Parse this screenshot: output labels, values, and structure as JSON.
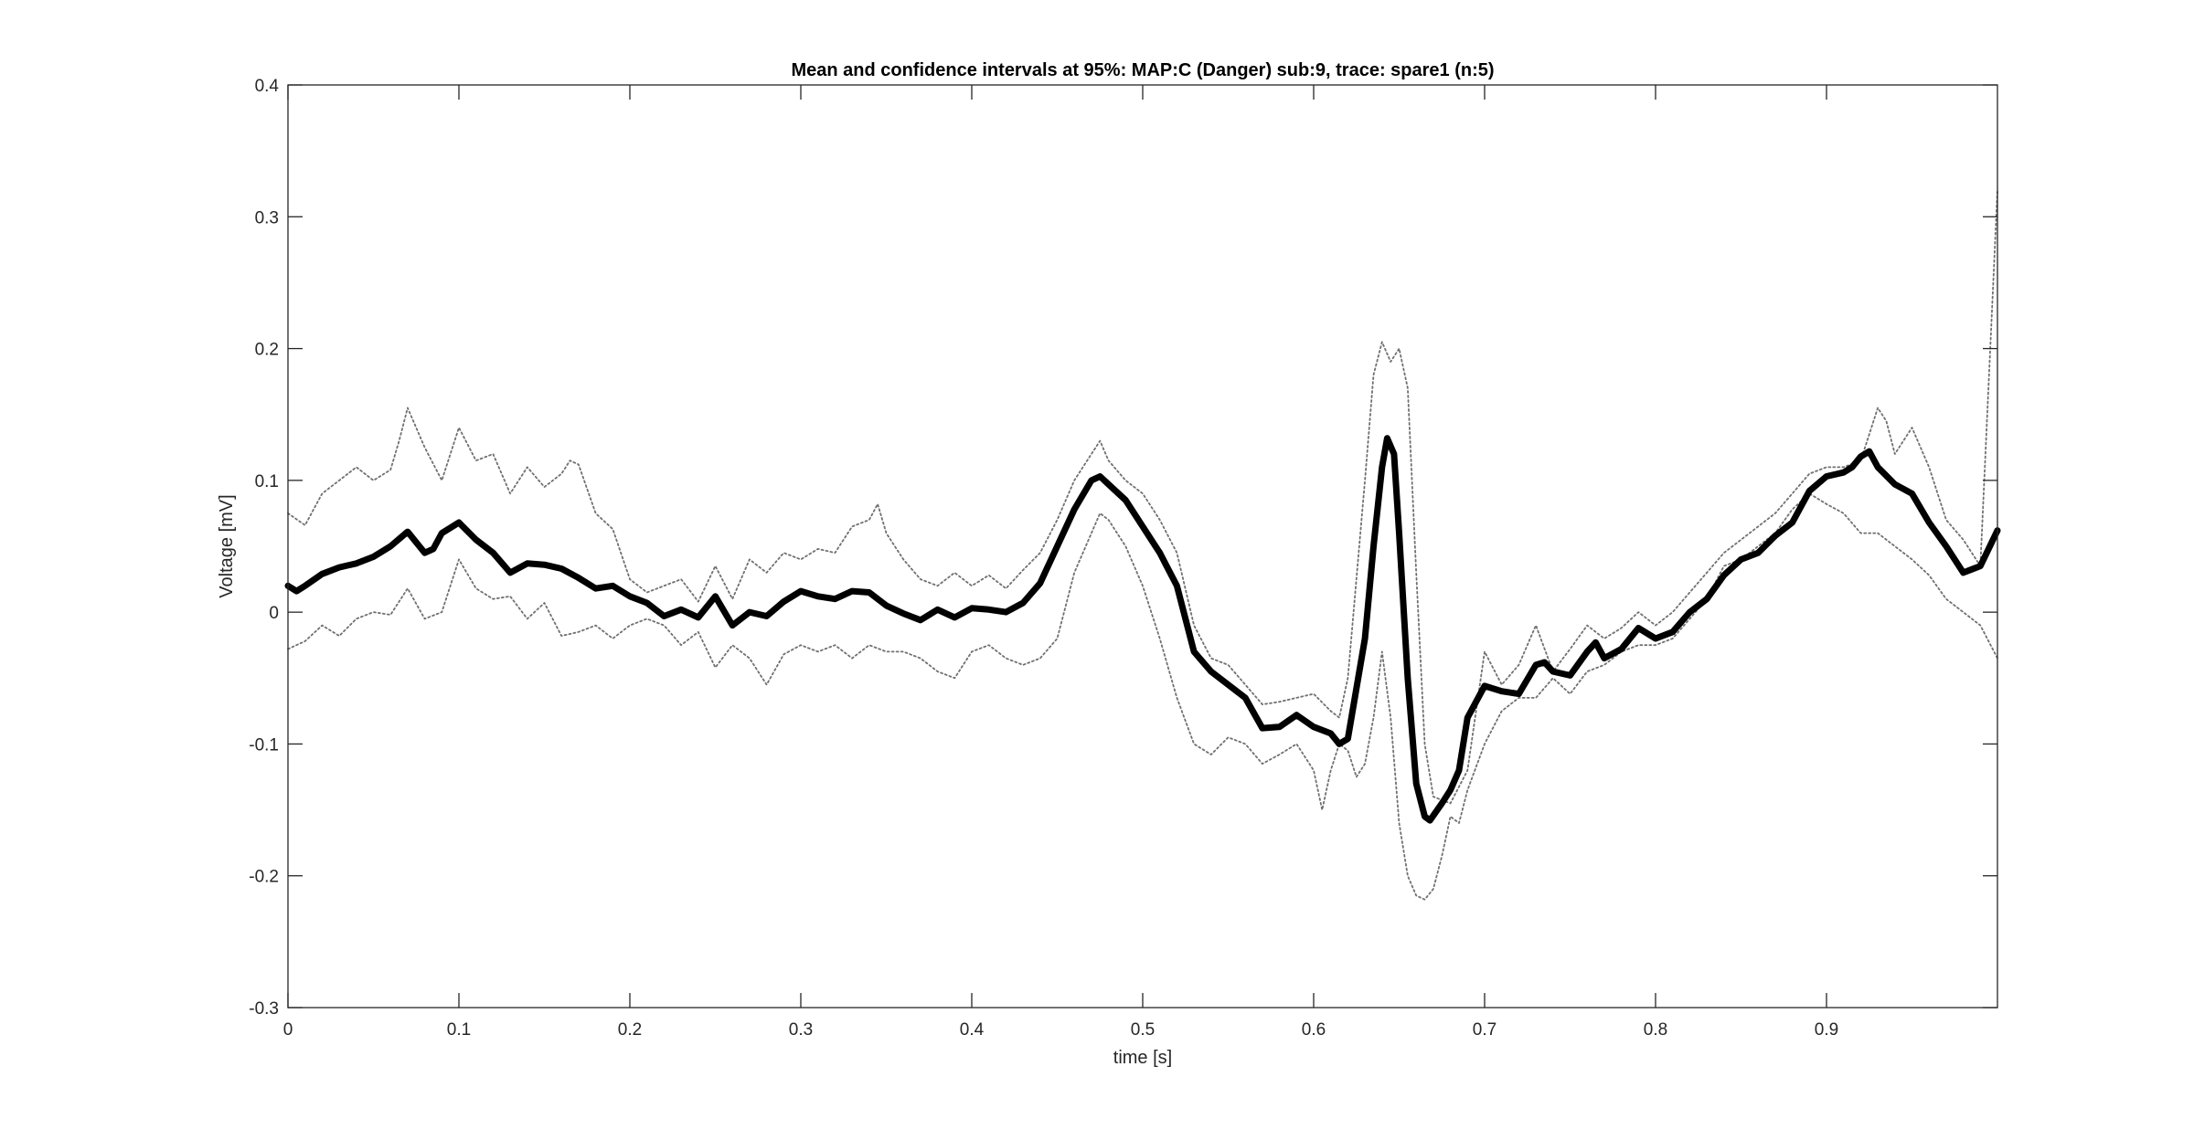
{
  "chart_data": {
    "type": "line",
    "title": "Mean and confidence intervals at 95%: MAP:C (Danger) sub:9, trace: spare1 (n:5)",
    "xlabel": "time [s]",
    "ylabel": "Voltage [mV]",
    "xlim": [
      0,
      1
    ],
    "ylim": [
      -0.3,
      0.4
    ],
    "xticks": [
      {
        "value": 0,
        "label": "0"
      },
      {
        "value": 0.1,
        "label": "0.1"
      },
      {
        "value": 0.2,
        "label": "0.2"
      },
      {
        "value": 0.3,
        "label": "0.3"
      },
      {
        "value": 0.4,
        "label": "0.4"
      },
      {
        "value": 0.5,
        "label": "0.5"
      },
      {
        "value": 0.6,
        "label": "0.6"
      },
      {
        "value": 0.7,
        "label": "0.7"
      },
      {
        "value": 0.8,
        "label": "0.8"
      },
      {
        "value": 0.9,
        "label": "0.9"
      }
    ],
    "yticks": [
      {
        "value": 0.4,
        "label": "0.4"
      },
      {
        "value": 0.3,
        "label": "0.3"
      },
      {
        "value": 0.2,
        "label": "0.2"
      },
      {
        "value": 0.1,
        "label": "0.1"
      },
      {
        "value": 0,
        "label": "0"
      },
      {
        "value": -0.1,
        "label": "-0.1"
      },
      {
        "value": -0.2,
        "label": "-0.2"
      },
      {
        "value": -0.3,
        "label": "-0.3"
      }
    ],
    "grid": false,
    "legend": false,
    "series": [
      {
        "role": "mean",
        "style": "solid-thick",
        "color": "#000000",
        "x": [
          0,
          0.005,
          0.01,
          0.02,
          0.03,
          0.04,
          0.05,
          0.06,
          0.07,
          0.08,
          0.085,
          0.09,
          0.1,
          0.11,
          0.12,
          0.13,
          0.14,
          0.15,
          0.16,
          0.17,
          0.18,
          0.19,
          0.2,
          0.21,
          0.22,
          0.23,
          0.24,
          0.25,
          0.26,
          0.27,
          0.28,
          0.29,
          0.3,
          0.31,
          0.32,
          0.33,
          0.34,
          0.35,
          0.36,
          0.37,
          0.38,
          0.39,
          0.4,
          0.41,
          0.42,
          0.43,
          0.44,
          0.45,
          0.46,
          0.47,
          0.475,
          0.48,
          0.49,
          0.5,
          0.51,
          0.52,
          0.53,
          0.54,
          0.55,
          0.56,
          0.57,
          0.58,
          0.59,
          0.6,
          0.61,
          0.615,
          0.62,
          0.63,
          0.635,
          0.64,
          0.643,
          0.647,
          0.65,
          0.655,
          0.66,
          0.665,
          0.668,
          0.675,
          0.68,
          0.685,
          0.69,
          0.7,
          0.71,
          0.72,
          0.73,
          0.735,
          0.74,
          0.75,
          0.76,
          0.765,
          0.77,
          0.78,
          0.79,
          0.8,
          0.81,
          0.82,
          0.83,
          0.84,
          0.85,
          0.86,
          0.87,
          0.88,
          0.89,
          0.9,
          0.91,
          0.915,
          0.92,
          0.925,
          0.93,
          0.94,
          0.95,
          0.96,
          0.97,
          0.98,
          0.99,
          1.0
        ],
        "y": [
          0.02,
          0.016,
          0.02,
          0.029,
          0.034,
          0.037,
          0.042,
          0.05,
          0.061,
          0.045,
          0.048,
          0.06,
          0.068,
          0.055,
          0.045,
          0.03,
          0.037,
          0.036,
          0.033,
          0.026,
          0.018,
          0.02,
          0.012,
          0.007,
          -0.003,
          0.002,
          -0.004,
          0.012,
          -0.01,
          0.0,
          -0.003,
          0.008,
          0.016,
          0.012,
          0.01,
          0.016,
          0.015,
          0.005,
          -0.001,
          -0.006,
          0.002,
          -0.004,
          0.003,
          0.002,
          0.0,
          0.007,
          0.022,
          0.05,
          0.078,
          0.1,
          0.103,
          0.097,
          0.085,
          0.065,
          0.045,
          0.02,
          -0.03,
          -0.045,
          -0.055,
          -0.065,
          -0.088,
          -0.087,
          -0.078,
          -0.087,
          -0.092,
          -0.1,
          -0.096,
          -0.02,
          0.05,
          0.11,
          0.132,
          0.12,
          0.06,
          -0.05,
          -0.13,
          -0.155,
          -0.158,
          -0.145,
          -0.135,
          -0.12,
          -0.08,
          -0.056,
          -0.06,
          -0.062,
          -0.04,
          -0.038,
          -0.045,
          -0.048,
          -0.03,
          -0.023,
          -0.035,
          -0.028,
          -0.012,
          -0.02,
          -0.015,
          0.0,
          0.01,
          0.028,
          0.04,
          0.045,
          0.058,
          0.068,
          0.092,
          0.103,
          0.106,
          0.11,
          0.118,
          0.122,
          0.11,
          0.097,
          0.09,
          0.068,
          0.05,
          0.03,
          0.035,
          0.062
        ]
      },
      {
        "role": "upper-ci",
        "style": "dotted",
        "color": "#707070",
        "x": [
          0,
          0.01,
          0.02,
          0.03,
          0.04,
          0.05,
          0.06,
          0.065,
          0.07,
          0.08,
          0.09,
          0.1,
          0.11,
          0.12,
          0.13,
          0.14,
          0.15,
          0.16,
          0.165,
          0.17,
          0.18,
          0.19,
          0.2,
          0.21,
          0.22,
          0.23,
          0.24,
          0.25,
          0.26,
          0.27,
          0.28,
          0.29,
          0.3,
          0.31,
          0.32,
          0.33,
          0.34,
          0.345,
          0.35,
          0.36,
          0.37,
          0.38,
          0.39,
          0.4,
          0.41,
          0.42,
          0.43,
          0.44,
          0.45,
          0.46,
          0.47,
          0.475,
          0.48,
          0.49,
          0.5,
          0.51,
          0.52,
          0.53,
          0.54,
          0.55,
          0.56,
          0.57,
          0.58,
          0.59,
          0.6,
          0.61,
          0.615,
          0.62,
          0.63,
          0.635,
          0.64,
          0.645,
          0.65,
          0.655,
          0.66,
          0.665,
          0.67,
          0.68,
          0.69,
          0.7,
          0.71,
          0.72,
          0.73,
          0.74,
          0.75,
          0.76,
          0.77,
          0.78,
          0.79,
          0.8,
          0.81,
          0.82,
          0.83,
          0.84,
          0.85,
          0.86,
          0.87,
          0.88,
          0.89,
          0.9,
          0.91,
          0.92,
          0.925,
          0.93,
          0.935,
          0.94,
          0.945,
          0.95,
          0.96,
          0.97,
          0.98,
          0.99,
          1.0
        ],
        "y": [
          0.075,
          0.066,
          0.09,
          0.1,
          0.11,
          0.1,
          0.108,
          0.13,
          0.155,
          0.125,
          0.1,
          0.14,
          0.115,
          0.12,
          0.09,
          0.11,
          0.095,
          0.105,
          0.115,
          0.112,
          0.075,
          0.063,
          0.025,
          0.015,
          0.02,
          0.025,
          0.008,
          0.035,
          0.01,
          0.04,
          0.03,
          0.045,
          0.04,
          0.048,
          0.045,
          0.065,
          0.07,
          0.082,
          0.06,
          0.04,
          0.025,
          0.02,
          0.03,
          0.02,
          0.028,
          0.018,
          0.032,
          0.045,
          0.07,
          0.1,
          0.12,
          0.13,
          0.115,
          0.1,
          0.09,
          0.07,
          0.045,
          -0.01,
          -0.035,
          -0.04,
          -0.055,
          -0.07,
          -0.068,
          -0.065,
          -0.062,
          -0.075,
          -0.08,
          -0.05,
          0.1,
          0.18,
          0.205,
          0.19,
          0.2,
          0.17,
          0.03,
          -0.1,
          -0.14,
          -0.145,
          -0.12,
          -0.03,
          -0.055,
          -0.04,
          -0.01,
          -0.045,
          -0.028,
          -0.01,
          -0.02,
          -0.012,
          0.0,
          -0.01,
          0.0,
          0.015,
          0.03,
          0.045,
          0.055,
          0.065,
          0.075,
          0.09,
          0.105,
          0.11,
          0.11,
          0.115,
          0.135,
          0.155,
          0.145,
          0.12,
          0.13,
          0.14,
          0.11,
          0.07,
          0.055,
          0.035,
          0.32
        ]
      },
      {
        "role": "lower-ci",
        "style": "dotted",
        "color": "#707070",
        "x": [
          0,
          0.01,
          0.02,
          0.03,
          0.04,
          0.05,
          0.06,
          0.07,
          0.08,
          0.09,
          0.1,
          0.11,
          0.12,
          0.13,
          0.14,
          0.15,
          0.16,
          0.17,
          0.18,
          0.19,
          0.2,
          0.21,
          0.22,
          0.23,
          0.24,
          0.25,
          0.26,
          0.27,
          0.28,
          0.29,
          0.3,
          0.31,
          0.32,
          0.33,
          0.34,
          0.35,
          0.36,
          0.37,
          0.38,
          0.39,
          0.4,
          0.41,
          0.42,
          0.43,
          0.44,
          0.45,
          0.46,
          0.47,
          0.475,
          0.48,
          0.49,
          0.5,
          0.51,
          0.52,
          0.53,
          0.54,
          0.55,
          0.56,
          0.57,
          0.58,
          0.59,
          0.6,
          0.605,
          0.61,
          0.615,
          0.62,
          0.625,
          0.63,
          0.635,
          0.64,
          0.645,
          0.65,
          0.655,
          0.66,
          0.665,
          0.67,
          0.675,
          0.68,
          0.685,
          0.69,
          0.7,
          0.71,
          0.72,
          0.73,
          0.74,
          0.75,
          0.76,
          0.77,
          0.78,
          0.79,
          0.8,
          0.81,
          0.82,
          0.83,
          0.84,
          0.85,
          0.86,
          0.87,
          0.88,
          0.89,
          0.9,
          0.91,
          0.92,
          0.93,
          0.94,
          0.95,
          0.96,
          0.97,
          0.98,
          0.99,
          1.0
        ],
        "y": [
          -0.028,
          -0.022,
          -0.01,
          -0.018,
          -0.005,
          0.0,
          -0.002,
          0.018,
          -0.005,
          0.0,
          0.04,
          0.018,
          0.01,
          0.012,
          -0.005,
          0.007,
          -0.018,
          -0.015,
          -0.01,
          -0.02,
          -0.01,
          -0.005,
          -0.01,
          -0.025,
          -0.015,
          -0.042,
          -0.025,
          -0.035,
          -0.055,
          -0.032,
          -0.025,
          -0.03,
          -0.025,
          -0.035,
          -0.025,
          -0.03,
          -0.03,
          -0.035,
          -0.045,
          -0.05,
          -0.03,
          -0.025,
          -0.035,
          -0.04,
          -0.035,
          -0.02,
          0.03,
          0.06,
          0.075,
          0.07,
          0.05,
          0.02,
          -0.02,
          -0.065,
          -0.1,
          -0.108,
          -0.095,
          -0.1,
          -0.115,
          -0.108,
          -0.1,
          -0.12,
          -0.15,
          -0.12,
          -0.1,
          -0.105,
          -0.125,
          -0.115,
          -0.08,
          -0.03,
          -0.08,
          -0.16,
          -0.2,
          -0.215,
          -0.218,
          -0.21,
          -0.185,
          -0.155,
          -0.16,
          -0.135,
          -0.1,
          -0.075,
          -0.065,
          -0.065,
          -0.05,
          -0.062,
          -0.045,
          -0.04,
          -0.03,
          -0.025,
          -0.025,
          -0.02,
          -0.005,
          0.01,
          0.035,
          0.04,
          0.05,
          0.06,
          0.078,
          0.09,
          0.082,
          0.075,
          0.06,
          0.06,
          0.05,
          0.04,
          0.028,
          0.01,
          0.0,
          -0.01,
          -0.035
        ]
      }
    ]
  }
}
